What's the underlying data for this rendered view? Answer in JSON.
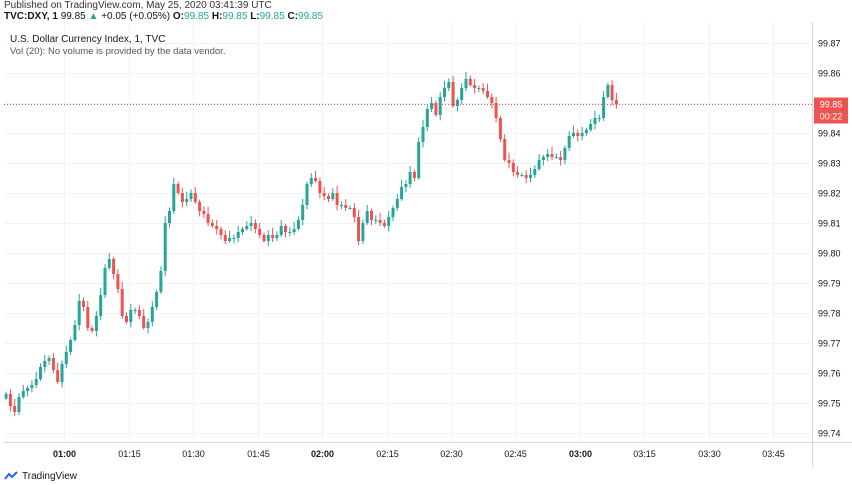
{
  "header": {
    "published": "Published on TradingView.com, May 25, 2020 03:41:39 UTC",
    "symbol": "TVC:DXY, 1",
    "change": "+0.05 (+0.05%)",
    "last": "99.85",
    "up_arrow": "▲",
    "open_label": "O:",
    "open": "99.85",
    "high_label": "H:",
    "high": "99.85",
    "low_label": "L:",
    "low": "99.85",
    "close_label": "C:",
    "close": "99.85"
  },
  "legend": {
    "title": "U.S. Dollar Currency Index, 1, TVC",
    "volume_note": "Vol (20): No volume is provided by the data vendor."
  },
  "footer": {
    "brand": "TradingView"
  },
  "colors": {
    "up": "#26a69a",
    "down": "#ef5350",
    "grid": "#f0f3fa",
    "axis": "#d6d8de",
    "text": "#131722"
  },
  "chart_data": {
    "type": "candlestick",
    "title": "U.S. Dollar Currency Index, 1, TVC",
    "ylim": [
      99.737,
      99.877
    ],
    "yticks": [
      "99.87",
      "99.86",
      "99.85",
      "99.84",
      "99.83",
      "99.82",
      "99.81",
      "99.80",
      "99.79",
      "99.78",
      "99.77",
      "99.76",
      "99.75",
      "99.74"
    ],
    "ytick_values": [
      99.87,
      99.86,
      99.85,
      99.84,
      99.83,
      99.82,
      99.81,
      99.8,
      99.79,
      99.78,
      99.77,
      99.76,
      99.75,
      99.74
    ],
    "xticks": [
      "01:00",
      "01:15",
      "01:30",
      "01:45",
      "02:00",
      "02:15",
      "02:30",
      "02:45",
      "03:00",
      "03:15",
      "03:30",
      "03:45"
    ],
    "xtick_minutes": [
      60,
      75,
      90,
      105,
      120,
      135,
      150,
      165,
      180,
      195,
      210,
      225
    ],
    "bold_xticks": [
      "01:00",
      "02:00",
      "03:00"
    ],
    "x_start_minute": 46,
    "x_end_minute": 234,
    "last_price_label": "99.85",
    "countdown_label": "00:22",
    "last_price": 99.8495,
    "candles_close": [
      99.753,
      99.749,
      99.747,
      99.752,
      99.754,
      99.755,
      99.756,
      99.758,
      99.762,
      99.764,
      99.765,
      99.761,
      99.757,
      99.763,
      99.767,
      99.771,
      99.776,
      99.784,
      99.782,
      99.775,
      99.774,
      99.779,
      99.786,
      99.795,
      99.798,
      99.793,
      99.788,
      99.779,
      99.777,
      99.781,
      99.781,
      99.779,
      99.775,
      99.777,
      99.782,
      99.787,
      99.794,
      99.81,
      99.814,
      99.823,
      99.82,
      99.817,
      99.818,
      99.82,
      99.817,
      99.814,
      99.813,
      99.81,
      99.809,
      99.808,
      99.806,
      99.804,
      99.805,
      99.805,
      99.807,
      99.808,
      99.809,
      99.81,
      99.808,
      99.806,
      99.804,
      99.806,
      99.805,
      99.806,
      99.809,
      99.807,
      99.807,
      99.808,
      99.811,
      99.816,
      99.823,
      99.825,
      99.824,
      99.82,
      99.819,
      99.818,
      99.82,
      99.816,
      99.816,
      99.815,
      99.815,
      99.812,
      99.804,
      99.81,
      99.814,
      99.811,
      99.811,
      99.81,
      99.809,
      99.812,
      99.815,
      99.818,
      99.822,
      99.823,
      99.827,
      99.825,
      99.837,
      99.842,
      99.848,
      99.85,
      99.846,
      99.852,
      99.855,
      99.857,
      99.849,
      99.851,
      99.855,
      99.858,
      99.856,
      99.855,
      99.855,
      99.854,
      99.852,
      99.85,
      99.845,
      99.838,
      99.831,
      99.83,
      99.827,
      99.826,
      99.826,
      99.825,
      99.826,
      99.828,
      99.831,
      99.832,
      99.833,
      99.832,
      99.832,
      99.831,
      99.835,
      99.839,
      99.84,
      99.839,
      99.84,
      99.841,
      99.843,
      99.845,
      99.845,
      99.852,
      99.856,
      99.851,
      99.8495
    ]
  }
}
